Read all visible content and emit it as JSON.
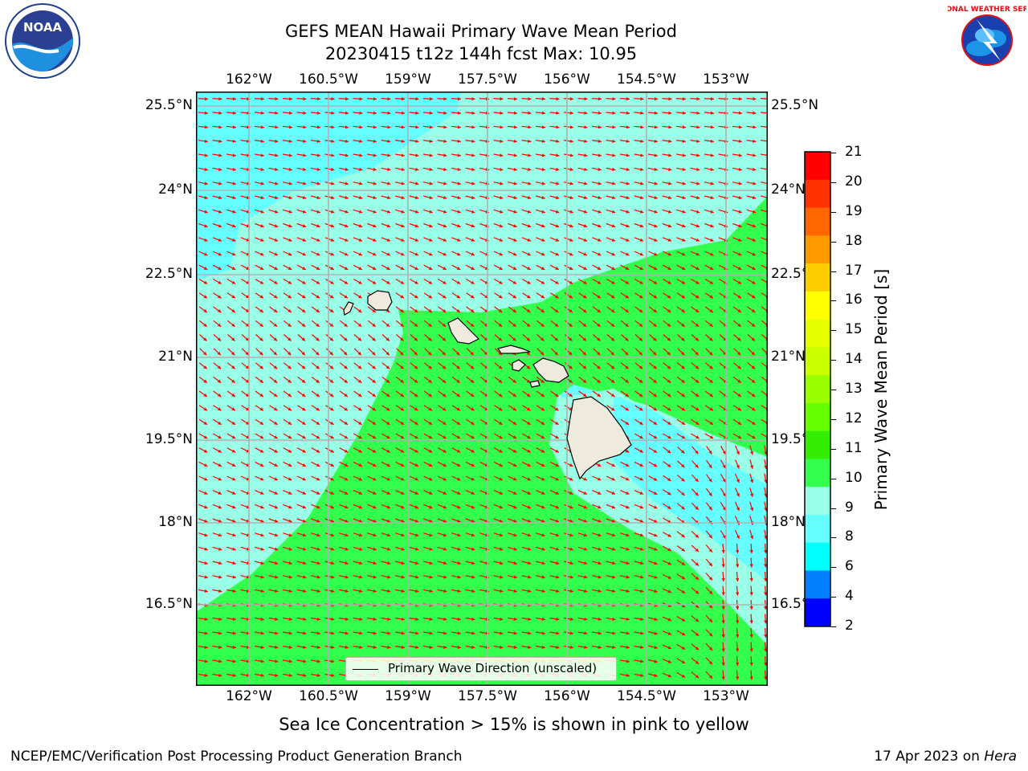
{
  "title": {
    "line1": "GEFS MEAN Hawaii Primary Wave Mean Period",
    "line2": "20230415 t12z 144h fcst   Max: 10.95"
  },
  "map": {
    "lon_ticks": [
      "162°W",
      "160.5°W",
      "159°W",
      "157.5°W",
      "156°W",
      "154.5°W",
      "153°W"
    ],
    "lat_ticks": [
      "25.5°N",
      "24°N",
      "22.5°N",
      "21°N",
      "19.5°N",
      "18°N",
      "16.5°N"
    ],
    "colors": {
      "land": "#eeeadd",
      "grid": "#b0b0b0",
      "arrow": "#ff0000",
      "period_8_9": "#66ffff",
      "period_9_10": "#99ffe6",
      "period_10_11": "#33ff4d"
    }
  },
  "colorbar": {
    "label": "Primary Wave Mean Period [s]",
    "ticks": [
      "21",
      "20",
      "19",
      "18",
      "17",
      "16",
      "15",
      "14",
      "13",
      "12",
      "11",
      "10",
      "9",
      "8",
      "6",
      "4",
      "2"
    ],
    "colors": [
      "#ff0000",
      "#ff3300",
      "#ff6600",
      "#ff9900",
      "#ffcc00",
      "#ffff00",
      "#e6ff00",
      "#ccff00",
      "#99ff00",
      "#66ff00",
      "#33ee00",
      "#33ff4d",
      "#99ffe6",
      "#66ffff",
      "#00ffff",
      "#0080ff",
      "#0000ff"
    ]
  },
  "legend": {
    "label": "Primary Wave Direction (unscaled)"
  },
  "logos": {
    "left": "NOAA",
    "right": "NATIONAL WEATHER SERVICE"
  },
  "footer": {
    "note": "Sea Ice Concentration > 15% is shown in pink to yellow",
    "credit": "NCEP/EMC/Verification Post Processing Product Generation Branch",
    "date_prefix": "17 Apr 2023 on ",
    "date_host": "Hera"
  }
}
